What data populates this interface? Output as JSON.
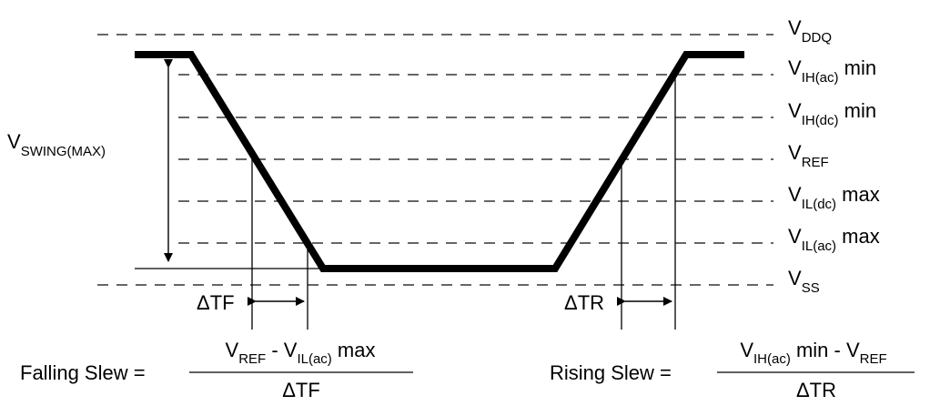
{
  "levels": [
    {
      "main": "V",
      "sub": "DDQ",
      "suffix": ""
    },
    {
      "main": "V",
      "sub": "IH(ac)",
      "suffix": " min"
    },
    {
      "main": "V",
      "sub": "IH(dc)",
      "suffix": " min"
    },
    {
      "main": "V",
      "sub": "REF",
      "suffix": ""
    },
    {
      "main": "V",
      "sub": "IL(dc)",
      "suffix": " max"
    },
    {
      "main": "V",
      "sub": "IL(ac)",
      "suffix": " max"
    },
    {
      "main": "V",
      "sub": "SS",
      "suffix": ""
    }
  ],
  "swing": {
    "main": "V",
    "sub": "SWING(MAX)"
  },
  "delta_tf": "ΔTF",
  "delta_tr": "ΔTR",
  "falling": {
    "label": "Falling Slew =",
    "num_a_main": "V",
    "num_a_sub": "REF",
    "num_mid": " - V",
    "num_b_sub": "IL(ac)",
    "num_end": " max",
    "den": "ΔTF"
  },
  "rising": {
    "label": "Rising Slew =",
    "num_a_main": "V",
    "num_a_sub": "IH(ac)",
    "num_mid": " min - V",
    "num_b_sub": "REF",
    "num_end": "",
    "den": "ΔTR"
  }
}
